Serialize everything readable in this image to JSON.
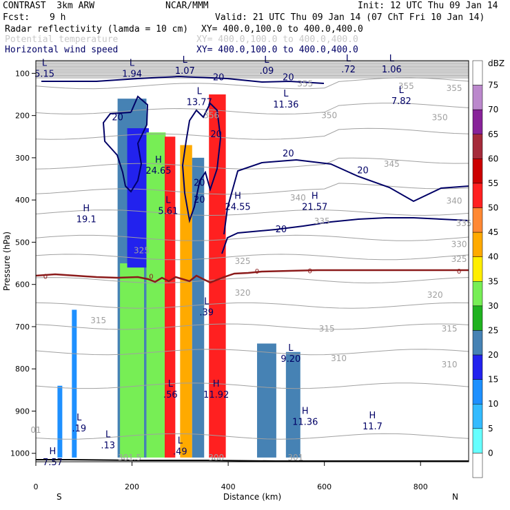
{
  "header": {
    "model": "CONTRAST  3km ARW",
    "org": "NCAR/MMM",
    "init": "Init: 12 UTC Thu 09 Jan 14",
    "fcst_label": "Fcst:",
    "fcst_value": "9 h",
    "valid": "Valid: 21 UTC Thu 09 Jan 14 (07 ChT Fri 10 Jan 14)",
    "field1_name": "Radar reflectivity (lamda = 10 cm)",
    "field1_xy": "XY= 400.0,100.0 to 400.0,400.0",
    "field2_name": "Potential temperature",
    "field2_xy": "XY= 400.0,100.0 to 400.0,400.0",
    "field3_name": "Horizontal wind speed",
    "field3_xy": "XY= 400.0,100.0 to 400.0,400.0"
  },
  "colors": {
    "navy": "#000066",
    "gray_contour": "#a0a0a0",
    "maroon_zero": "#8b1a1a",
    "terrain": "#000000"
  },
  "chart_data": {
    "type": "heatmap",
    "title": "",
    "xlabel": "Distance (km)",
    "ylabel": "Pressure (hPa)",
    "x_ticks": [
      0,
      200,
      400,
      600,
      800
    ],
    "xlim": [
      0,
      900
    ],
    "y_ticks": [
      100,
      200,
      300,
      400,
      500,
      600,
      700,
      800,
      900,
      1000
    ],
    "ylim": [
      1020,
      70
    ],
    "x_end_labels": {
      "left": "S",
      "right": "N"
    },
    "colorbar": {
      "unit": "dBZ",
      "levels": [
        0,
        5,
        10,
        15,
        20,
        25,
        30,
        35,
        40,
        45,
        50,
        55,
        60,
        65,
        70,
        75
      ],
      "colors": [
        "#ffffff",
        "#66ffff",
        "#33bbff",
        "#1e90ff",
        "#2222ee",
        "#4682b4",
        "#1fb21f",
        "#77ee55",
        "#ffee00",
        "#ffaa00",
        "#ff8833",
        "#ff2020",
        "#cc0000",
        "#a52a3a",
        "#882299",
        "#bb88cc",
        "#ffffff"
      ]
    },
    "reflectivity_columns": [
      {
        "x1": 170,
        "x2": 230,
        "p_top": 160,
        "p_bot": 1010,
        "dbz": 20
      },
      {
        "x1": 175,
        "x2": 225,
        "p_top": 550,
        "p_bot": 1010,
        "dbz": 30
      },
      {
        "x1": 190,
        "x2": 235,
        "p_top": 230,
        "p_bot": 560,
        "dbz": 15
      },
      {
        "x1": 230,
        "x2": 270,
        "p_top": 240,
        "p_bot": 1010,
        "dbz": 30
      },
      {
        "x1": 268,
        "x2": 290,
        "p_top": 250,
        "p_bot": 1010,
        "dbz": 50
      },
      {
        "x1": 300,
        "x2": 325,
        "p_top": 270,
        "p_bot": 1010,
        "dbz": 40
      },
      {
        "x1": 325,
        "x2": 350,
        "p_top": 300,
        "p_bot": 1010,
        "dbz": 20
      },
      {
        "x1": 360,
        "x2": 395,
        "p_top": 150,
        "p_bot": 1010,
        "dbz": 50
      },
      {
        "x1": 45,
        "x2": 55,
        "p_top": 840,
        "p_bot": 1010,
        "dbz": 10
      },
      {
        "x1": 75,
        "x2": 85,
        "p_top": 660,
        "p_bot": 1010,
        "dbz": 10
      },
      {
        "x1": 460,
        "x2": 500,
        "p_top": 740,
        "p_bot": 1010,
        "dbz": 20
      },
      {
        "x1": 520,
        "x2": 550,
        "p_top": 760,
        "p_bot": 1010,
        "dbz": 20
      }
    ],
    "wind_labels": [
      {
        "type": "L",
        "x": 18,
        "p": 95,
        "value": "5.15"
      },
      {
        "type": "L",
        "x": 200,
        "p": 95,
        "value": "1.94"
      },
      {
        "type": "L",
        "x": 310,
        "p": 88,
        "value": "1.07"
      },
      {
        "type": "L",
        "x": 480,
        "p": 88,
        "value": ".09"
      },
      {
        "type": "L",
        "x": 650,
        "p": 85,
        "value": ".72"
      },
      {
        "type": "L",
        "x": 740,
        "p": 85,
        "value": "1.06"
      },
      {
        "type": "L",
        "x": 340,
        "p": 162,
        "value": "13.77"
      },
      {
        "type": "L",
        "x": 520,
        "p": 168,
        "value": "11.36"
      },
      {
        "type": "L",
        "x": 760,
        "p": 160,
        "value": "7.82"
      },
      {
        "type": "H",
        "x": 255,
        "p": 325,
        "value": "24.65"
      },
      {
        "type": "L",
        "x": 275,
        "p": 420,
        "value": "5.61"
      },
      {
        "type": "H",
        "x": 420,
        "p": 410,
        "value": "24.55"
      },
      {
        "type": "H",
        "x": 580,
        "p": 410,
        "value": "21.57"
      },
      {
        "type": "H",
        "x": 105,
        "p": 440,
        "value": "19.1"
      },
      {
        "type": "L",
        "x": 355,
        "p": 660,
        "value": ".39"
      },
      {
        "type": "L",
        "x": 530,
        "p": 770,
        "value": "9.20"
      },
      {
        "type": "L",
        "x": 280,
        "p": 855,
        "value": ".56"
      },
      {
        "type": "H",
        "x": 375,
        "p": 855,
        "value": "11.92"
      },
      {
        "type": "H",
        "x": 560,
        "p": 920,
        "value": "11.36"
      },
      {
        "type": "H",
        "x": 700,
        "p": 930,
        "value": "11.7"
      },
      {
        "type": "L",
        "x": 90,
        "p": 935,
        "value": ".19"
      },
      {
        "type": "L",
        "x": 150,
        "p": 975,
        "value": ".13"
      },
      {
        "type": "L",
        "x": 300,
        "p": 990,
        "value": ".49"
      },
      {
        "type": "H",
        "x": 35,
        "p": 1015,
        "value": "7.57"
      }
    ],
    "wind_contour_labels": [
      {
        "x": 380,
        "p": 110,
        "value": "20"
      },
      {
        "x": 525,
        "p": 110,
        "value": "20"
      },
      {
        "x": 170,
        "p": 205,
        "value": "20"
      },
      {
        "x": 375,
        "p": 245,
        "value": "20"
      },
      {
        "x": 525,
        "p": 290,
        "value": "20"
      },
      {
        "x": 680,
        "p": 330,
        "value": "20"
      },
      {
        "x": 340,
        "p": 360,
        "value": "20"
      },
      {
        "x": 340,
        "p": 400,
        "value": "20"
      },
      {
        "x": 510,
        "p": 470,
        "value": "20"
      }
    ],
    "theta_labels": [
      {
        "x": 560,
        "p": 125,
        "value": "355"
      },
      {
        "x": 770,
        "p": 130,
        "value": "355"
      },
      {
        "x": 870,
        "p": 135,
        "value": "355"
      },
      {
        "x": 365,
        "p": 200,
        "value": "356"
      },
      {
        "x": 610,
        "p": 200,
        "value": "350"
      },
      {
        "x": 840,
        "p": 205,
        "value": "350"
      },
      {
        "x": 740,
        "p": 315,
        "value": "345"
      },
      {
        "x": 545,
        "p": 395,
        "value": "340"
      },
      {
        "x": 870,
        "p": 402,
        "value": "340"
      },
      {
        "x": 595,
        "p": 450,
        "value": "335"
      },
      {
        "x": 890,
        "p": 455,
        "value": "335"
      },
      {
        "x": 880,
        "p": 505,
        "value": "330"
      },
      {
        "x": 220,
        "p": 520,
        "value": "325"
      },
      {
        "x": 430,
        "p": 545,
        "value": "325"
      },
      {
        "x": 880,
        "p": 540,
        "value": "325"
      },
      {
        "x": 430,
        "p": 620,
        "value": "320"
      },
      {
        "x": 830,
        "p": 625,
        "value": "320"
      },
      {
        "x": 130,
        "p": 685,
        "value": "315"
      },
      {
        "x": 605,
        "p": 705,
        "value": "315"
      },
      {
        "x": 860,
        "p": 705,
        "value": "315"
      },
      {
        "x": 630,
        "p": 775,
        "value": "310"
      },
      {
        "x": 860,
        "p": 790,
        "value": "310"
      },
      {
        "x": 195,
        "p": 1010,
        "value": "301.5"
      },
      {
        "x": 375,
        "p": 1010,
        "value": "300"
      },
      {
        "x": 540,
        "p": 1010,
        "value": "301"
      },
      {
        "x": 0,
        "p": 945,
        "value": "01"
      }
    ],
    "zero_labels": [
      {
        "x": 20,
        "p": 580,
        "value": "0"
      },
      {
        "x": 240,
        "p": 580,
        "value": "0"
      },
      {
        "x": 460,
        "p": 568,
        "value": "0"
      },
      {
        "x": 570,
        "p": 567,
        "value": "0"
      },
      {
        "x": 880,
        "p": 568,
        "value": "0"
      }
    ]
  }
}
